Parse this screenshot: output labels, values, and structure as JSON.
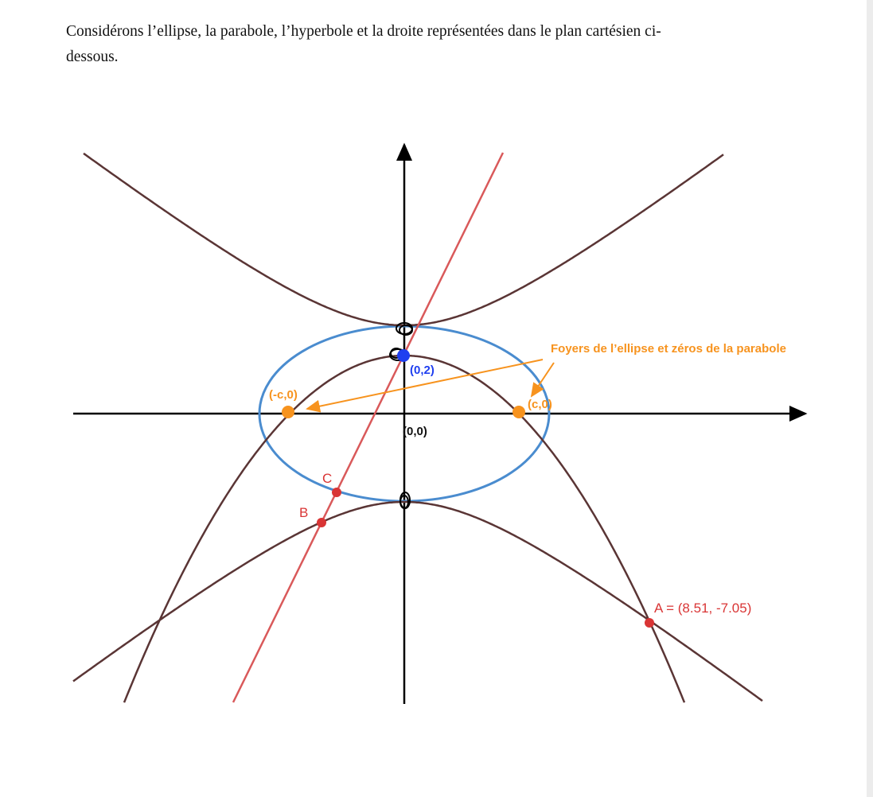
{
  "document": {
    "intro_line1": "Considérons l’ellipse, la parabole, l’hyperbole et la droite représentées dans le plan cartésien ci-",
    "intro_line2": "dessous."
  },
  "figure": {
    "curves": [
      "ellipse",
      "parabola",
      "hyperbola",
      "line"
    ],
    "colors": {
      "ellipse": "#4a8ccf",
      "parabola": "#5a3535",
      "hyperbola": "#5a3535",
      "line": "#d9595a",
      "foci": "#f7931e",
      "point_blue": "#1f3ff0",
      "points_red": "#d93535"
    },
    "labels": {
      "origin": "(0,0)",
      "blue_point": "(0,2)",
      "focus_left": "(-c,0)",
      "focus_right": "(c,0)",
      "annotation": "Foyers de l’ellipse et zéros de la parabole",
      "point_a": "A = (8.51, -7.05)",
      "point_b": "B",
      "point_c": "C"
    }
  }
}
